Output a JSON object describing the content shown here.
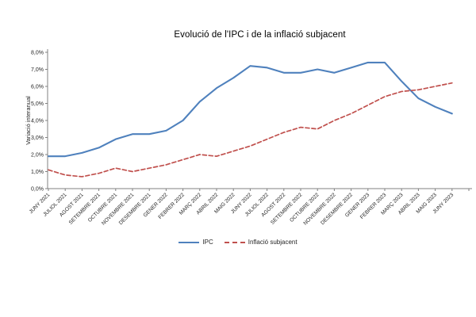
{
  "chart_data": {
    "type": "line",
    "title": "Evolució de l'IPC i de la inflació subjacent",
    "ylabel": "Variació interanual",
    "xlabel": "",
    "ylim": [
      0,
      8
    ],
    "ytick_step": 1,
    "ytick_labels": [
      "0,0%",
      "1,0%",
      "2,0%",
      "3,0%",
      "4,0%",
      "5,0%",
      "6,0%",
      "7,0%",
      "8,0%"
    ],
    "grid": false,
    "legend_position": "bottom-center",
    "categories": [
      "JUNY 2021",
      "JULIOL 2021",
      "AGOST 2021",
      "SETEMBRE 2021",
      "OCTUBRE 2021",
      "NOVEMBRE 2021",
      "DESEMBRE 2021",
      "GENER 2022",
      "FEBRER 2022",
      "MARÇ 2022",
      "ABRIL 2022",
      "MAIG 2022",
      "JUNY 2022",
      "JULIOL 2022",
      "AGOST 2022",
      "SETEMBRE 2022",
      "OCTUBRE 2022",
      "NOVEMBRE 2022",
      "DESEMBRE 2022",
      "GENER 2023",
      "FEBRER 2023",
      "MARÇ 2023",
      "ABRIL 2023",
      "MAIG 2023",
      "JUNY 2023"
    ],
    "series": [
      {
        "name": "IPC",
        "color": "#4F81BD",
        "line_style": "solid",
        "values": [
          1.9,
          1.9,
          2.1,
          2.4,
          2.9,
          3.2,
          3.2,
          3.4,
          4.0,
          5.1,
          5.9,
          6.5,
          7.2,
          7.1,
          6.8,
          6.8,
          7.0,
          6.8,
          7.1,
          7.4,
          7.4,
          6.3,
          5.3,
          4.8,
          4.4
        ]
      },
      {
        "name": "Inflació subjacent",
        "color": "#C0504D",
        "line_style": "dashed",
        "values": [
          1.1,
          0.8,
          0.7,
          0.9,
          1.2,
          1.0,
          1.2,
          1.4,
          1.7,
          2.0,
          1.9,
          2.2,
          2.5,
          2.9,
          3.3,
          3.6,
          3.5,
          4.0,
          4.4,
          4.9,
          5.4,
          5.7,
          5.8,
          6.0,
          6.2
        ]
      }
    ],
    "axis_color": "#808080"
  }
}
